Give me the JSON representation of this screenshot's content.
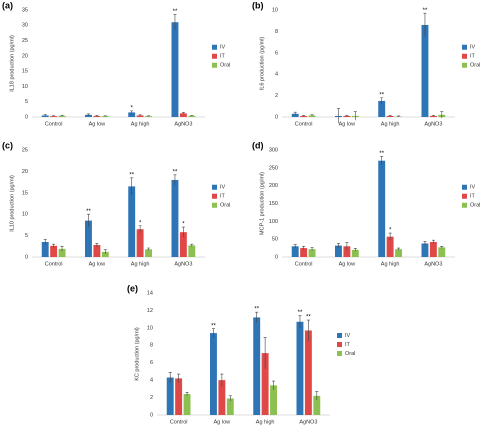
{
  "chart_data": [
    {
      "type": "bar",
      "label": "(a)",
      "y_label": "IL18 production (pg/ml)",
      "categories": [
        "Control",
        "Ag low",
        "Ag high",
        "AgNO3"
      ],
      "ylim": [
        0,
        35
      ],
      "yticks": [
        0,
        5,
        10,
        15,
        20,
        25,
        30,
        35
      ],
      "series": [
        {
          "name": "IV",
          "color": "#2e75b6",
          "values": [
            0.5,
            0.7,
            1.5,
            31
          ],
          "errors": [
            0.3,
            0.3,
            0.5,
            2.5
          ],
          "stars": [
            null,
            null,
            "*",
            "**"
          ]
        },
        {
          "name": "IT",
          "color": "#e04848",
          "values": [
            0.3,
            0.3,
            0.5,
            1.2
          ],
          "errors": [
            0.1,
            0.2,
            0.2,
            0.3
          ],
          "stars": [
            null,
            null,
            null,
            null
          ]
        },
        {
          "name": "Oral",
          "color": "#8cc152",
          "values": [
            0.4,
            0.3,
            0.3,
            0.4
          ],
          "errors": [
            0.1,
            0.1,
            0.1,
            0.1
          ],
          "stars": [
            null,
            null,
            null,
            null
          ]
        }
      ]
    },
    {
      "type": "bar",
      "label": "(b)",
      "y_label": "IL6 production (pg/ml)",
      "categories": [
        "Control",
        "Ag low",
        "Ag high",
        "AgNO3"
      ],
      "ylim": [
        0,
        10
      ],
      "yticks": [
        0,
        2,
        4,
        6,
        8,
        10
      ],
      "series": [
        {
          "name": "IV",
          "color": "#2e75b6",
          "values": [
            0.3,
            0.1,
            1.5,
            8.6
          ],
          "errors": [
            0.15,
            0.7,
            0.3,
            1.1
          ],
          "stars": [
            null,
            null,
            "**",
            "**"
          ]
        },
        {
          "name": "IT",
          "color": "#e04848",
          "values": [
            0.1,
            0.1,
            0.1,
            0.1
          ],
          "errors": [
            0.05,
            0.05,
            0.05,
            0.05
          ],
          "stars": [
            null,
            null,
            null,
            null
          ]
        },
        {
          "name": "Oral",
          "color": "#8cc152",
          "values": [
            0.15,
            0.1,
            0.05,
            0.2
          ],
          "errors": [
            0.05,
            0.4,
            0.05,
            0.3
          ],
          "stars": [
            null,
            null,
            null,
            null
          ]
        }
      ]
    },
    {
      "type": "bar",
      "label": "(c)",
      "y_label": "IL10 production (pg/ml)",
      "categories": [
        "Control",
        "Ag low",
        "Ag high",
        "AgNO3"
      ],
      "ylim": [
        0,
        25
      ],
      "yticks": [
        0,
        5,
        10,
        15,
        20,
        25
      ],
      "series": [
        {
          "name": "IV",
          "color": "#2e75b6",
          "values": [
            3.5,
            8.5,
            16.5,
            18
          ],
          "errors": [
            0.6,
            1.5,
            2,
            1.2
          ],
          "stars": [
            null,
            "**",
            "**",
            "**"
          ]
        },
        {
          "name": "IT",
          "color": "#e04848",
          "values": [
            2.6,
            2.8,
            6.5,
            5.8
          ],
          "errors": [
            0.4,
            0.4,
            0.8,
            1.2
          ],
          "stars": [
            null,
            null,
            "*",
            "*"
          ]
        },
        {
          "name": "Oral",
          "color": "#8cc152",
          "values": [
            1.9,
            1.2,
            1.8,
            2.7
          ],
          "errors": [
            0.6,
            0.5,
            0.3,
            0.3
          ],
          "stars": [
            null,
            null,
            null,
            null
          ]
        }
      ]
    },
    {
      "type": "bar",
      "label": "(d)",
      "y_label": "MCP-1 production (pg/ml)",
      "categories": [
        "Control",
        "Ag low",
        "Ag high",
        "AgNO3"
      ],
      "ylim": [
        0,
        300
      ],
      "yticks": [
        0,
        50,
        100,
        150,
        200,
        250,
        300
      ],
      "series": [
        {
          "name": "IV",
          "color": "#2e75b6",
          "values": [
            30,
            32,
            270,
            38
          ],
          "errors": [
            5,
            6,
            12,
            6
          ],
          "stars": [
            null,
            null,
            "**",
            null
          ]
        },
        {
          "name": "IT",
          "color": "#e04848",
          "values": [
            25,
            30,
            57,
            42
          ],
          "errors": [
            5,
            10,
            10,
            5
          ],
          "stars": [
            null,
            null,
            "*",
            null
          ]
        },
        {
          "name": "Oral",
          "color": "#8cc152",
          "values": [
            22,
            20,
            22,
            27
          ],
          "errors": [
            4,
            4,
            3,
            3
          ],
          "stars": [
            null,
            null,
            null,
            null
          ]
        }
      ]
    },
    {
      "type": "bar",
      "label": "(e)",
      "y_label": "KC production (pg/ml)",
      "categories": [
        "Control",
        "Ag low",
        "Ag high",
        "AgNO3"
      ],
      "ylim": [
        0,
        14
      ],
      "yticks": [
        0,
        2,
        4,
        6,
        8,
        10,
        12,
        14
      ],
      "series": [
        {
          "name": "IV",
          "color": "#2e75b6",
          "values": [
            4.3,
            9.4,
            11.2,
            10.7
          ],
          "errors": [
            0.6,
            0.5,
            0.6,
            0.7
          ],
          "stars": [
            null,
            "**",
            "**",
            "**"
          ]
        },
        {
          "name": "IT",
          "color": "#e04848",
          "values": [
            4.2,
            4.0,
            7.1,
            9.7
          ],
          "errors": [
            0.5,
            0.7,
            1.8,
            1.2
          ],
          "stars": [
            null,
            null,
            null,
            "**"
          ]
        },
        {
          "name": "Oral",
          "color": "#8cc152",
          "values": [
            2.4,
            1.9,
            3.4,
            2.2
          ],
          "errors": [
            0.2,
            0.3,
            0.5,
            0.5
          ],
          "stars": [
            null,
            null,
            null,
            null
          ]
        }
      ]
    }
  ]
}
